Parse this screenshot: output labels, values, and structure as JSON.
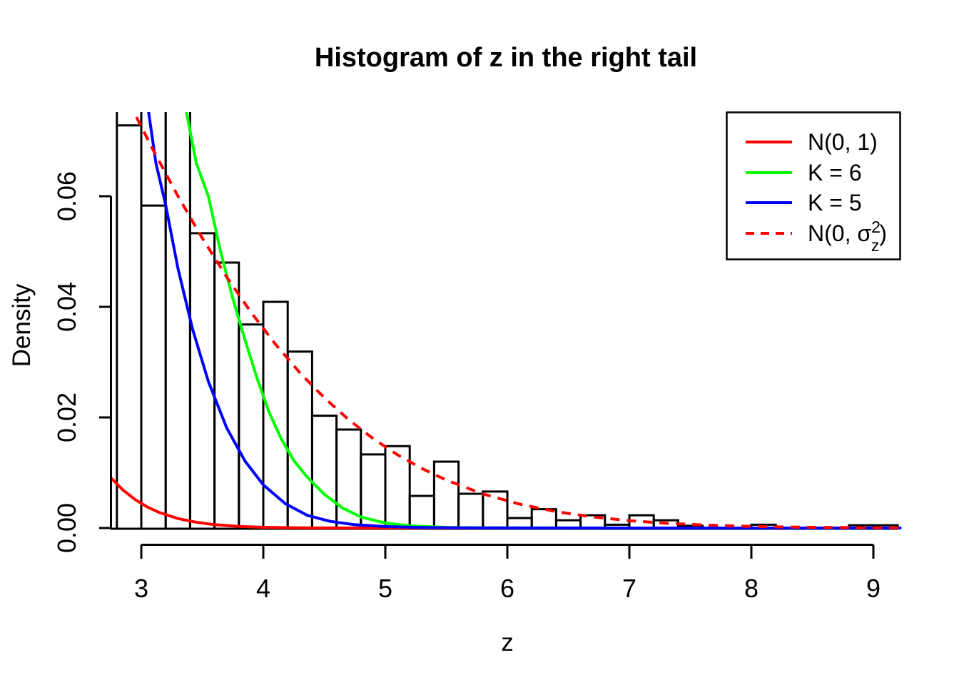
{
  "title": "Histogram of z in the right tail",
  "x_axis": {
    "label": "z",
    "ticks": [
      "3",
      "4",
      "5",
      "6",
      "7",
      "8",
      "9"
    ],
    "tick_values": [
      3,
      4,
      5,
      6,
      7,
      8,
      9
    ]
  },
  "y_axis": {
    "label": "Density",
    "ticks": [
      "0.00",
      "0.02",
      "0.04",
      "0.06"
    ],
    "tick_values": [
      0,
      0.02,
      0.04,
      0.06
    ]
  },
  "legend": {
    "items": [
      {
        "label": "N(0, 1)",
        "color": "#ff0000",
        "dashed": false
      },
      {
        "label": "K = 6",
        "color": "#00ff00",
        "dashed": false
      },
      {
        "label": "K = 5",
        "color": "#0000ff",
        "dashed": false
      },
      {
        "parts": {
          "prefix": "N(0, ",
          "sigma": "σ",
          "sup": "2",
          "sub": "z",
          "close": ")"
        },
        "color": "#ff0000",
        "dashed": true
      }
    ]
  },
  "chart_data": {
    "type": "bar",
    "subtype": "histogram-with-density-curves",
    "title": "Histogram of z in the right tail",
    "xlabel": "z",
    "ylabel": "Density",
    "xlim": [
      2.75,
      9.35
    ],
    "ylim": [
      0,
      0.0752
    ],
    "grid": false,
    "legend_position": "top-right",
    "bin_width": 0.2,
    "bars": [
      {
        "from": 2.8,
        "to": 3.0,
        "density": 0.0728,
        "tall_edges": true
      },
      {
        "from": 3.0,
        "to": 3.2,
        "density": 0.0583,
        "tall_edges": true
      },
      {
        "from": 3.2,
        "to": 3.4,
        "density": 0.08,
        "clipped": true
      },
      {
        "from": 3.4,
        "to": 3.6,
        "density": 0.0533
      },
      {
        "from": 3.6,
        "to": 3.8,
        "density": 0.048
      },
      {
        "from": 3.8,
        "to": 4.0,
        "density": 0.0368
      },
      {
        "from": 4.0,
        "to": 4.2,
        "density": 0.0409
      },
      {
        "from": 4.2,
        "to": 4.4,
        "density": 0.0319
      },
      {
        "from": 4.4,
        "to": 4.6,
        "density": 0.0203
      },
      {
        "from": 4.6,
        "to": 4.8,
        "density": 0.0178
      },
      {
        "from": 4.8,
        "to": 5.0,
        "density": 0.0133
      },
      {
        "from": 5.0,
        "to": 5.2,
        "density": 0.0148
      },
      {
        "from": 5.2,
        "to": 5.4,
        "density": 0.0058
      },
      {
        "from": 5.4,
        "to": 5.6,
        "density": 0.012
      },
      {
        "from": 5.6,
        "to": 5.8,
        "density": 0.0062
      },
      {
        "from": 5.8,
        "to": 6.0,
        "density": 0.0066
      },
      {
        "from": 6.0,
        "to": 6.2,
        "density": 0.0018
      },
      {
        "from": 6.2,
        "to": 6.4,
        "density": 0.0034
      },
      {
        "from": 6.4,
        "to": 6.6,
        "density": 0.0014
      },
      {
        "from": 6.6,
        "to": 6.8,
        "density": 0.0023
      },
      {
        "from": 6.8,
        "to": 7.0,
        "density": 0.0006
      },
      {
        "from": 7.0,
        "to": 7.2,
        "density": 0.0023
      },
      {
        "from": 7.2,
        "to": 7.4,
        "density": 0.0014
      },
      {
        "from": 7.4,
        "to": 7.6,
        "density": 0.0004
      },
      {
        "from": 7.6,
        "to": 7.8,
        "density": 0
      },
      {
        "from": 7.8,
        "to": 8.0,
        "density": 0
      },
      {
        "from": 8.0,
        "to": 8.2,
        "density": 0.0006
      },
      {
        "from": 8.2,
        "to": 8.4,
        "density": 0
      },
      {
        "from": 8.4,
        "to": 8.6,
        "density": 0
      },
      {
        "from": 8.6,
        "to": 8.8,
        "density": 0
      },
      {
        "from": 8.8,
        "to": 9.0,
        "density": 0.0005
      },
      {
        "from": 9.0,
        "to": 9.2,
        "density": 0.0005
      }
    ],
    "curves": [
      {
        "name": "N(0, 1)",
        "id": "n01",
        "color": "#ff0000",
        "dashed": false,
        "points": [
          [
            2.75,
            0.00909
          ],
          [
            2.85,
            0.00687
          ],
          [
            2.95,
            0.00514
          ],
          [
            3.05,
            0.00381
          ],
          [
            3.15,
            0.00279
          ],
          [
            3.3,
            0.00172
          ],
          [
            3.45,
            0.00104
          ],
          [
            3.6,
            0.00061
          ],
          [
            3.8,
            0.00029
          ],
          [
            4.0,
            0.000134
          ],
          [
            4.25,
            4.92e-05
          ],
          [
            4.5,
            1.6e-05
          ],
          [
            4.8,
            3.8e-06
          ],
          [
            5.1,
            1e-06
          ],
          [
            6.0,
            0
          ],
          [
            7.0,
            0
          ],
          [
            8.0,
            0
          ],
          [
            9.23,
            0
          ]
        ]
      },
      {
        "name": "K = 6",
        "id": "k6",
        "color": "#00ff00",
        "dashed": false,
        "points": [
          [
            3.3,
            0.085
          ],
          [
            3.37,
            0.0752
          ],
          [
            3.45,
            0.066
          ],
          [
            3.55,
            0.06
          ],
          [
            3.65,
            0.05
          ],
          [
            3.75,
            0.0415
          ],
          [
            3.85,
            0.034
          ],
          [
            3.95,
            0.027
          ],
          [
            4.05,
            0.0208
          ],
          [
            4.15,
            0.016
          ],
          [
            4.25,
            0.0122
          ],
          [
            4.36,
            0.0092
          ],
          [
            4.5,
            0.0061
          ],
          [
            4.65,
            0.0036
          ],
          [
            4.8,
            0.002
          ],
          [
            5.0,
            0.0009
          ],
          [
            5.2,
            0.0004
          ],
          [
            5.5,
            0.00012
          ],
          [
            5.8,
            4e-05
          ],
          [
            6.2,
            1e-05
          ],
          [
            6.8,
            0
          ],
          [
            8.0,
            0
          ],
          [
            9.23,
            0
          ]
        ]
      },
      {
        "name": "K = 5",
        "id": "k5",
        "color": "#0000ff",
        "dashed": false,
        "points": [
          [
            3.0,
            0.085
          ],
          [
            3.06,
            0.0752
          ],
          [
            3.12,
            0.066
          ],
          [
            3.2,
            0.0584
          ],
          [
            3.3,
            0.047
          ],
          [
            3.42,
            0.036
          ],
          [
            3.55,
            0.0265
          ],
          [
            3.7,
            0.0181
          ],
          [
            3.85,
            0.0121
          ],
          [
            4.0,
            0.0078
          ],
          [
            4.18,
            0.0044
          ],
          [
            4.36,
            0.0023
          ],
          [
            4.55,
            0.0012
          ],
          [
            4.75,
            0.0006
          ],
          [
            5.0,
            0.00027
          ],
          [
            5.3,
            0.0001
          ],
          [
            5.7,
            3e-05
          ],
          [
            6.2,
            1e-05
          ],
          [
            7.0,
            0
          ],
          [
            9.23,
            0
          ]
        ]
      },
      {
        "name": "N(0, sigma_z^2)",
        "id": "n0sigma",
        "color": "#ff0000",
        "dashed": true,
        "points": [
          [
            2.9,
            0.07695
          ],
          [
            2.94,
            0.0752
          ],
          [
            3.1,
            0.06825
          ],
          [
            3.3,
            0.06004
          ],
          [
            3.5,
            0.05242
          ],
          [
            3.7,
            0.04539
          ],
          [
            3.9,
            0.03899
          ],
          [
            4.1,
            0.03322
          ],
          [
            4.3,
            0.02808
          ],
          [
            4.5,
            0.02355
          ],
          [
            4.7,
            0.01959
          ],
          [
            4.9,
            0.01617
          ],
          [
            5.1,
            0.01324
          ],
          [
            5.3,
            0.01076
          ],
          [
            5.5,
            0.00867
          ],
          [
            5.8,
            0.00617
          ],
          [
            6.1,
            0.00432
          ],
          [
            6.4,
            0.00297
          ],
          [
            6.7,
            0.002
          ],
          [
            7.0,
            0.00133
          ],
          [
            7.3,
            0.00087
          ],
          [
            7.6,
            0.00055
          ],
          [
            7.9,
            0.00035
          ],
          [
            8.2,
            0.00021
          ],
          [
            8.5,
            0.00013
          ],
          [
            8.8,
            8e-05
          ],
          [
            9.1,
            5e-05
          ],
          [
            9.23,
            4e-05
          ]
        ]
      }
    ]
  }
}
